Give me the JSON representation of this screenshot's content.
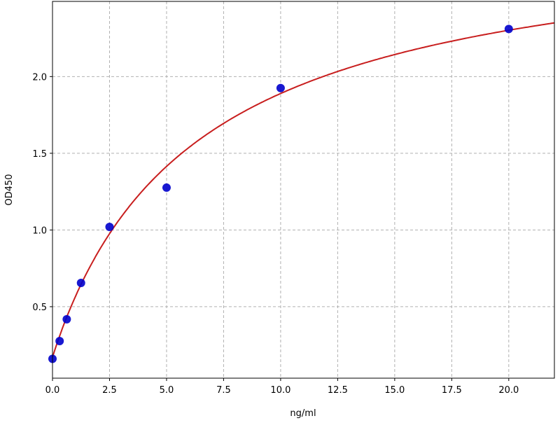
{
  "chart_data": {
    "type": "scatter",
    "title": "",
    "xlabel": "ng/ml",
    "ylabel": "OD450",
    "xlim": [
      0,
      22
    ],
    "ylim": [
      0.034,
      2.49
    ],
    "grid": true,
    "x_ticks": [
      "0.0",
      "2.5",
      "5.0",
      "7.5",
      "10.0",
      "12.5",
      "15.0",
      "17.5",
      "20.0"
    ],
    "y_ticks": [
      "0.5",
      "1.0",
      "1.5",
      "2.0"
    ],
    "points": {
      "x": [
        0,
        0.3125,
        0.625,
        1.25,
        2.5,
        5,
        10,
        20
      ],
      "y": [
        0.16,
        0.276,
        0.418,
        0.655,
        1.02,
        1.276,
        1.925,
        2.31
      ],
      "color": "#0000cc"
    },
    "fit_curve": {
      "model": "4PL",
      "a": 0.17,
      "d": 3.0,
      "c": 6.4,
      "b": 0.98,
      "color": "#c81e1e"
    },
    "grid_color": "#b0b0b0"
  }
}
